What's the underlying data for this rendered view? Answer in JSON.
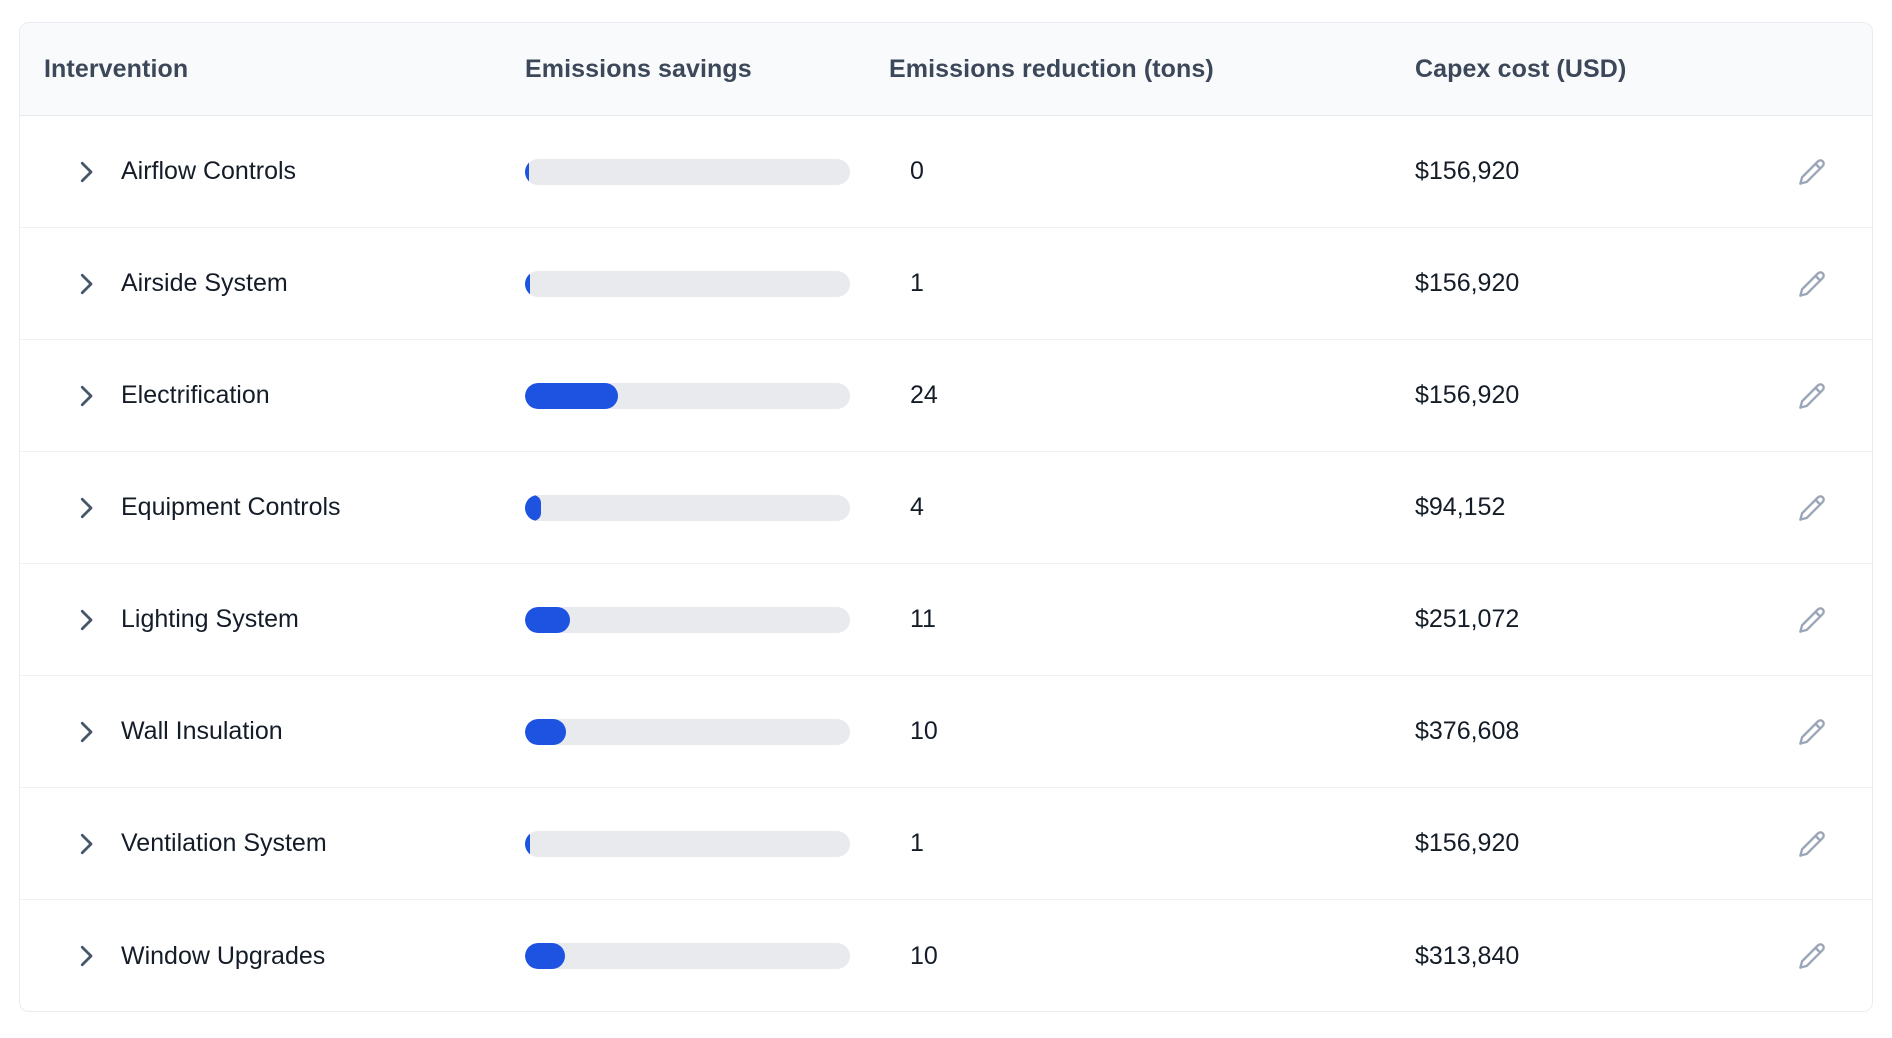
{
  "table": {
    "columns": {
      "intervention": "Intervention",
      "savings": "Emissions savings",
      "reduction": "Emissions reduction (tons)",
      "capex": "Capex cost (USD)"
    },
    "rows": [
      {
        "name": "Airflow Controls",
        "bar_percent": 1.2,
        "reduction_tons": "0",
        "capex": "$156,920"
      },
      {
        "name": "Airside System",
        "bar_percent": 1.6,
        "reduction_tons": "1",
        "capex": "$156,920"
      },
      {
        "name": "Electrification",
        "bar_percent": 28.5,
        "reduction_tons": "24",
        "capex": "$156,920"
      },
      {
        "name": "Equipment Controls",
        "bar_percent": 5.0,
        "reduction_tons": "4",
        "capex": "$94,152"
      },
      {
        "name": "Lighting System",
        "bar_percent": 13.8,
        "reduction_tons": "11",
        "capex": "$251,072"
      },
      {
        "name": "Wall Insulation",
        "bar_percent": 12.6,
        "reduction_tons": "10",
        "capex": "$376,608"
      },
      {
        "name": "Ventilation System",
        "bar_percent": 1.6,
        "reduction_tons": "1",
        "capex": "$156,920"
      },
      {
        "name": "Window Upgrades",
        "bar_percent": 12.4,
        "reduction_tons": "10",
        "capex": "$313,840"
      }
    ],
    "icons": {
      "expand": "chevron-right-icon",
      "edit": "pencil-icon"
    },
    "colors": {
      "bar_fill": "#1d53e0",
      "bar_track": "#e9eaee",
      "header_bg": "#f8fafc",
      "header_text": "#3c4859",
      "row_text": "#141c28",
      "chevron": "#475569",
      "edit_icon": "#9aa6b8",
      "border": "#e8ebf0"
    },
    "chart_data": {
      "type": "bar",
      "categories": [
        "Airflow Controls",
        "Airside System",
        "Electrification",
        "Equipment Controls",
        "Lighting System",
        "Wall Insulation",
        "Ventilation System",
        "Window Upgrades"
      ],
      "values": [
        0,
        1,
        24,
        4,
        11,
        10,
        1,
        10
      ],
      "title": "Emissions savings",
      "xlabel": "",
      "ylabel": "Emissions reduction (tons)"
    }
  }
}
